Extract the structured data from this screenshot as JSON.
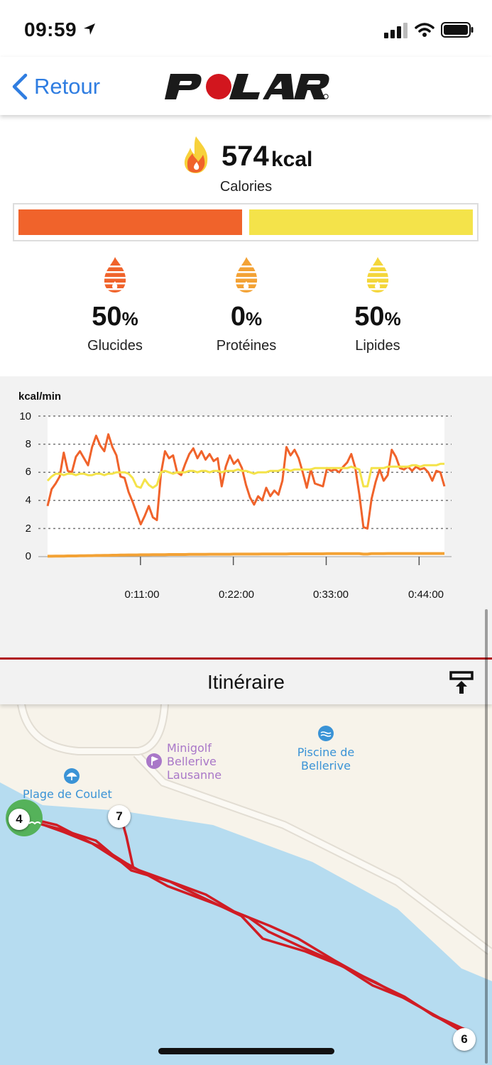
{
  "status_bar": {
    "time": "09:59"
  },
  "nav": {
    "back_label": "Retour",
    "brand": "POLAR"
  },
  "calories": {
    "value": "574",
    "unit": "kcal",
    "label": "Calories",
    "bar_segments": [
      {
        "fraction": 0.5,
        "color": "#f0632b"
      },
      {
        "fraction": 0.5,
        "color": "#f4e34a"
      }
    ]
  },
  "macros": [
    {
      "value": "50",
      "unit": "%",
      "name": "Glucides",
      "color": "#f0632b"
    },
    {
      "value": "0",
      "unit": "%",
      "name": "Protéines",
      "color": "#f3a235"
    },
    {
      "value": "50",
      "unit": "%",
      "name": "Lipides",
      "color": "#f4d63a"
    }
  ],
  "chart_data": {
    "type": "line",
    "ylabel": "kcal/min",
    "ylim": [
      0,
      10
    ],
    "yticks": [
      "0",
      "2",
      "4",
      "6",
      "8",
      "10"
    ],
    "xlim": [
      0,
      2820
    ],
    "x_tick_values": [
      660,
      1320,
      1980,
      2640
    ],
    "x_tick_labels": [
      "0:11:00",
      "0:22:00",
      "0:33:00",
      "0:44:00"
    ],
    "grid": "dashed-horizontal",
    "series": [
      {
        "color": "#f0632b",
        "values": [
          3.6,
          4.8,
          5.2,
          5.7,
          7.4,
          6.1,
          6.0,
          7.1,
          7.5,
          7.0,
          6.5,
          7.8,
          8.6,
          7.9,
          7.5,
          8.7,
          7.8,
          7.2,
          5.7,
          5.6,
          4.6,
          3.9,
          3.1,
          2.3,
          2.9,
          3.6,
          2.8,
          2.6,
          5.9,
          7.5,
          7.0,
          7.2,
          6.0,
          5.8,
          6.6,
          7.3,
          7.7,
          7.0,
          7.5,
          6.9,
          7.3,
          6.8,
          7.0,
          5.0,
          6.4,
          7.2,
          6.6,
          6.9,
          6.3,
          5.1,
          4.2,
          3.7,
          4.3,
          4.0,
          4.9,
          4.3,
          4.7,
          4.4,
          5.4,
          7.8,
          7.2,
          7.6,
          7.0,
          6.0,
          4.9,
          6.2,
          5.2,
          5.1,
          5.0,
          6.3,
          6.1,
          6.2,
          6.0,
          6.4,
          6.7,
          7.3,
          6.3,
          4.4,
          2.1,
          2.0,
          4.1,
          5.3,
          6.2,
          5.4,
          5.8,
          7.6,
          7.1,
          6.3,
          6.2,
          6.4,
          6.1,
          6.4,
          6.2,
          6.3,
          6.0,
          5.4,
          6.1,
          6.0,
          5.0
        ]
      },
      {
        "color": "#f4e34a",
        "values": [
          5.4,
          5.7,
          5.9,
          5.9,
          5.8,
          5.9,
          5.9,
          5.8,
          5.9,
          5.9,
          5.8,
          5.8,
          5.9,
          5.9,
          5.8,
          5.9,
          5.9,
          6.0,
          6.0,
          6.0,
          5.9,
          5.6,
          5.0,
          4.9,
          5.5,
          5.1,
          4.9,
          5.1,
          6.0,
          6.1,
          6.0,
          5.9,
          6.0,
          6.0,
          6.0,
          6.1,
          6.1,
          6.0,
          6.1,
          6.1,
          6.0,
          6.1,
          6.1,
          6.0,
          6.1,
          6.1,
          6.1,
          6.2,
          6.1,
          6.1,
          6.0,
          5.9,
          6.0,
          6.0,
          6.0,
          6.1,
          6.1,
          6.1,
          6.2,
          6.2,
          6.1,
          6.2,
          6.2,
          6.2,
          6.2,
          6.2,
          6.3,
          6.3,
          6.3,
          6.3,
          6.3,
          6.3,
          6.3,
          6.3,
          6.3,
          6.4,
          6.3,
          6.2,
          5.0,
          5.0,
          6.3,
          6.3,
          6.3,
          6.3,
          6.4,
          6.4,
          6.4,
          6.4,
          6.4,
          6.4,
          6.5,
          6.5,
          6.4,
          6.5,
          6.5,
          6.5,
          6.5,
          6.6,
          6.6
        ]
      },
      {
        "color": "#f3a235",
        "values": [
          0.03,
          0.03,
          0.04,
          0.04,
          0.04,
          0.05,
          0.05,
          0.05,
          0.06,
          0.06,
          0.07,
          0.07,
          0.08,
          0.08,
          0.09,
          0.09,
          0.1,
          0.1,
          0.11,
          0.11,
          0.12,
          0.12,
          0.12,
          0.13,
          0.13,
          0.13,
          0.14,
          0.14,
          0.14,
          0.14,
          0.15,
          0.15,
          0.15,
          0.15,
          0.15,
          0.16,
          0.16,
          0.16,
          0.16,
          0.16,
          0.17,
          0.17,
          0.17,
          0.17,
          0.17,
          0.17,
          0.18,
          0.18,
          0.18,
          0.18,
          0.18,
          0.18,
          0.18,
          0.19,
          0.19,
          0.19,
          0.19,
          0.19,
          0.19,
          0.19,
          0.2,
          0.2,
          0.2,
          0.2,
          0.2,
          0.2,
          0.2,
          0.2,
          0.2,
          0.21,
          0.21,
          0.21,
          0.21,
          0.21,
          0.21,
          0.21,
          0.21,
          0.21,
          0.18,
          0.18,
          0.21,
          0.21,
          0.21,
          0.21,
          0.22,
          0.22,
          0.22,
          0.22,
          0.22,
          0.22,
          0.22,
          0.22,
          0.22,
          0.22,
          0.22,
          0.22,
          0.22,
          0.22,
          0.22
        ]
      }
    ]
  },
  "itinerary": {
    "title": "Itinéraire"
  },
  "map": {
    "pois": [
      {
        "name": "Plage de Coulet",
        "color": "#3a93d6",
        "icon": "beach-umbrella-icon"
      },
      {
        "name": "Minigolf\nBellerive\nLausanne",
        "color": "#a977c8",
        "icon": "golf-flag-icon"
      },
      {
        "name": "Piscine de\nBellerive",
        "color": "#3a93d6",
        "icon": "swimming-icon"
      }
    ],
    "markers": [
      "4",
      "7",
      "6"
    ],
    "route_color": "#d01c24"
  }
}
